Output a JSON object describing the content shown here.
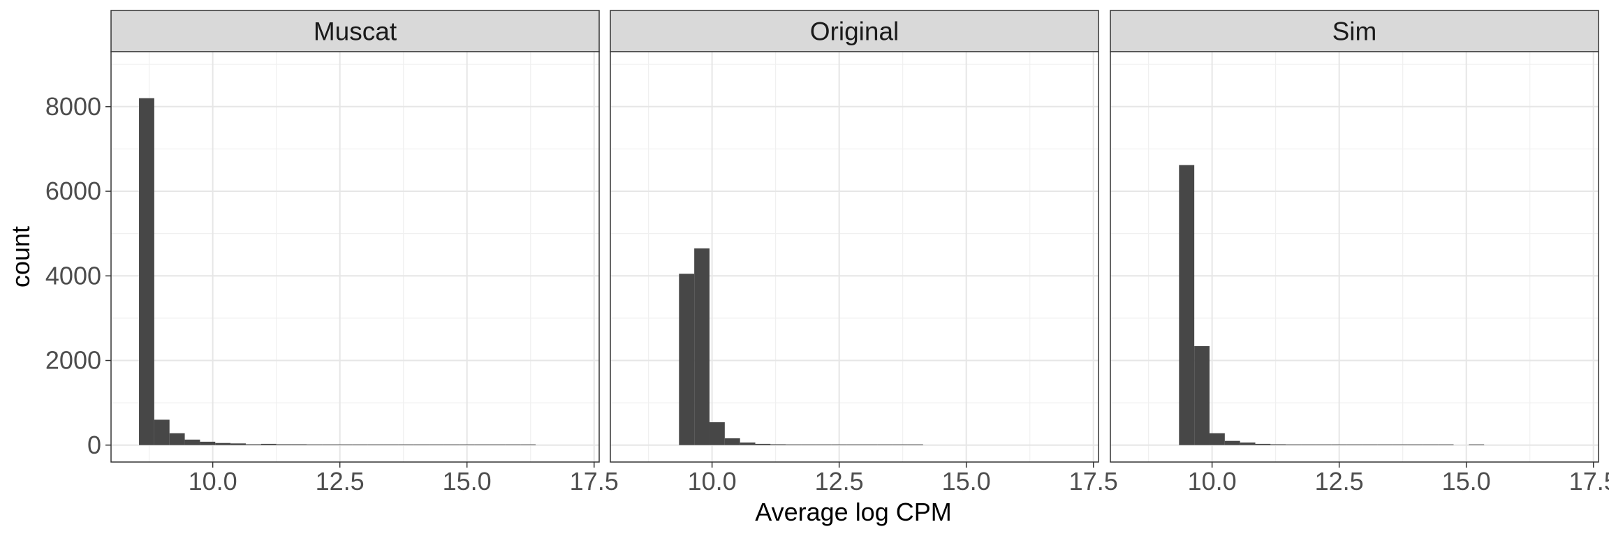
{
  "chart_data": {
    "type": "bar",
    "facet_layout": "1 row x 3 columns",
    "xlabel": "Average log CPM",
    "ylabel": "count",
    "xlim": [
      8.0,
      17.6
    ],
    "ylim": [
      -400,
      9300
    ],
    "x_ticks": [
      10.0,
      12.5,
      15.0,
      17.5
    ],
    "x_tick_labels": [
      "10.0",
      "12.5",
      "15.0",
      "17.5"
    ],
    "y_ticks": [
      0,
      2000,
      4000,
      6000,
      8000
    ],
    "y_tick_labels": [
      "0",
      "2000",
      "4000",
      "6000",
      "8000"
    ],
    "bin_width": 0.3,
    "grid": true,
    "theme": "bw",
    "bar_color": "#474747",
    "strip_fill": "#d9d9d9",
    "panels": [
      {
        "label": "Muscat",
        "bin_start": 8.55,
        "counts": [
          8200,
          600,
          280,
          130,
          80,
          50,
          40,
          20,
          30,
          20,
          20,
          10,
          10,
          10,
          10,
          5,
          5,
          5,
          10,
          5,
          5,
          10,
          5,
          5,
          5,
          10,
          0,
          0,
          0,
          0,
          0,
          0
        ]
      },
      {
        "label": "Original",
        "bin_start": 9.35,
        "counts": [
          4050,
          4650,
          540,
          160,
          60,
          30,
          20,
          10,
          10,
          10,
          5,
          5,
          5,
          5,
          5,
          5,
          0,
          0,
          0,
          0,
          0,
          0,
          0,
          0,
          0,
          0,
          0
        ]
      },
      {
        "label": "Sim",
        "bin_start": 9.35,
        "counts": [
          6620,
          2340,
          280,
          100,
          60,
          30,
          20,
          10,
          10,
          10,
          5,
          5,
          5,
          5,
          5,
          5,
          5,
          10,
          0,
          5,
          0,
          0,
          0,
          0,
          0,
          0,
          0
        ]
      }
    ]
  }
}
